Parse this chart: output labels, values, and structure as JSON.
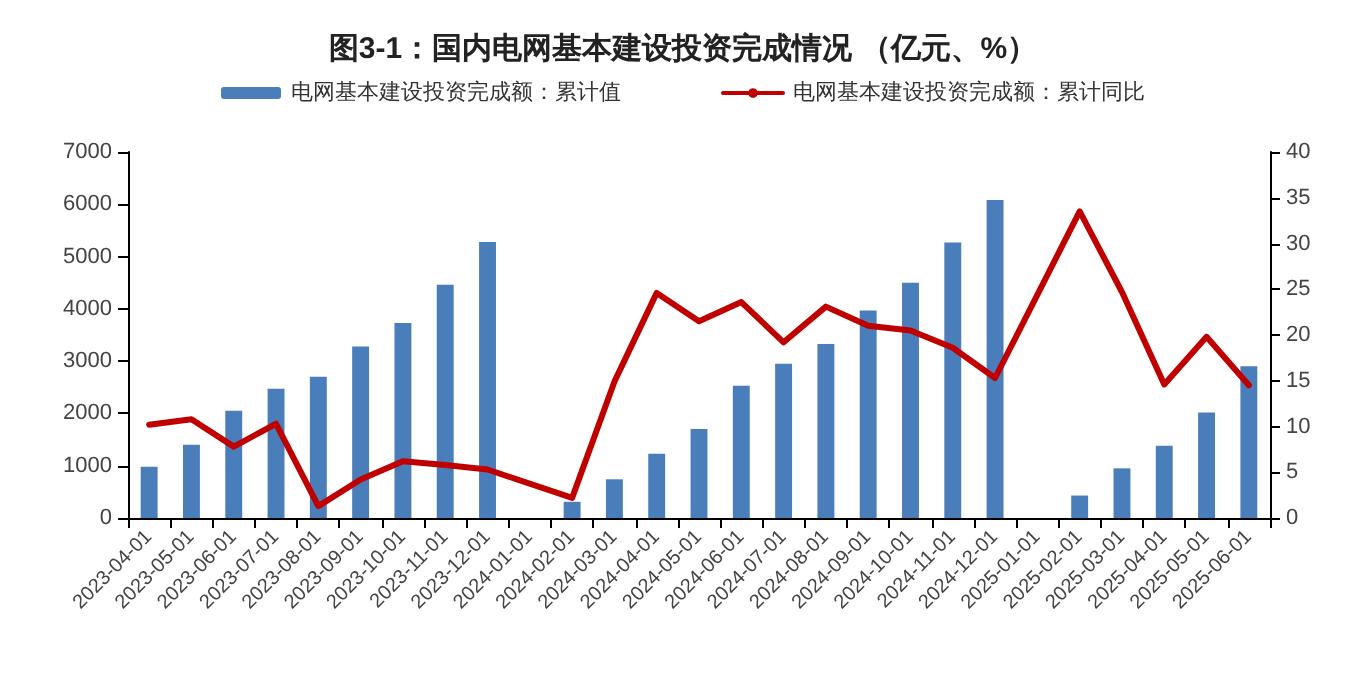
{
  "chart_data": {
    "type": "bar",
    "title": "图3-1：国内电网基本建设投资完成情况 （亿元、%）",
    "categories": [
      "2023-04-01",
      "2023-05-01",
      "2023-06-01",
      "2023-07-01",
      "2023-08-01",
      "2023-09-01",
      "2023-10-01",
      "2023-11-01",
      "2023-12-01",
      "2024-01-01",
      "2024-02-01",
      "2024-03-01",
      "2024-04-01",
      "2024-05-01",
      "2024-06-01",
      "2024-07-01",
      "2024-08-01",
      "2024-09-01",
      "2024-10-01",
      "2024-11-01",
      "2024-12-01",
      "2025-01-01",
      "2025-02-01",
      "2025-03-01",
      "2025-04-01",
      "2025-05-01",
      "2025-06-01"
    ],
    "series": [
      {
        "name": "电网基本建设投资完成额：累计值",
        "color": "#4a7ebb",
        "values": [
          980,
          1400,
          2050,
          2470,
          2700,
          3280,
          3730,
          4460,
          5280,
          null,
          310,
          740,
          1230,
          1700,
          2530,
          2950,
          3330,
          3970,
          4500,
          5270,
          6080,
          null,
          430,
          950,
          1380,
          2020,
          2900
        ]
      },
      {
        "name": "电网基本建设投资完成额：累计同比",
        "type": "line",
        "axis": "y2",
        "color": "#c00000",
        "values": [
          10.2,
          10.8,
          7.8,
          10.3,
          1.3,
          4.2,
          6.2,
          5.8,
          5.3,
          null,
          2.2,
          14.9,
          24.6,
          21.5,
          23.6,
          19.2,
          23.1,
          21.0,
          20.5,
          18.6,
          15.3,
          null,
          33.5,
          24.7,
          14.6,
          19.8,
          14.5
        ]
      }
    ],
    "ylim": [
      0,
      7000
    ],
    "yticks": [
      0,
      1000,
      2000,
      3000,
      4000,
      5000,
      6000,
      7000
    ],
    "y2lim": [
      0,
      40
    ],
    "y2ticks": [
      0,
      5,
      10,
      15,
      20,
      25,
      30,
      35,
      40
    ],
    "grid": false,
    "legend": "top",
    "marker": "none",
    "line_style": "solid"
  }
}
